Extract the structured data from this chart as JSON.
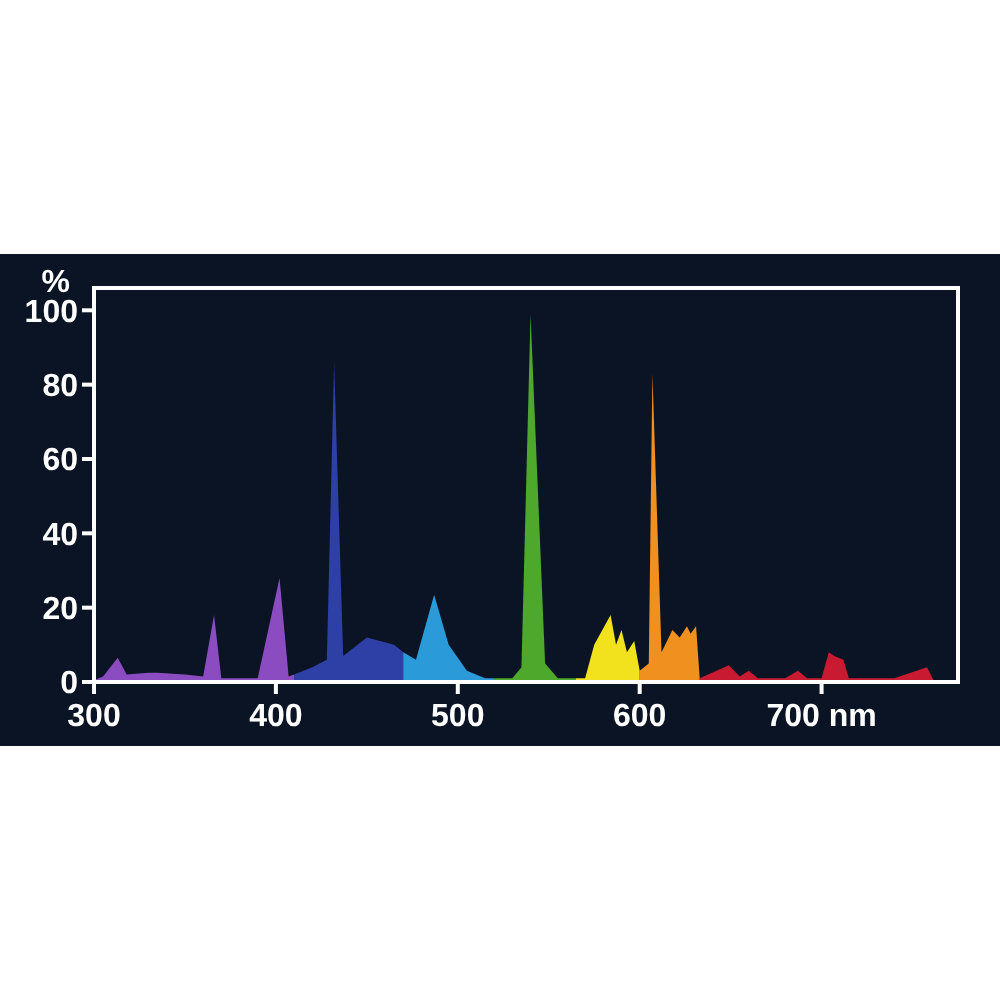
{
  "chart_data": {
    "type": "area",
    "ylabel": "%",
    "xlim": [
      300,
      775
    ],
    "ylim": [
      0,
      106
    ],
    "xticks": [
      300,
      400,
      500,
      600,
      {
        "value": 700,
        "label": "700 nm"
      }
    ],
    "yticks": [
      0,
      20,
      40,
      60,
      80,
      100
    ],
    "grid": false,
    "series": [
      {
        "color": "#8a4cc0",
        "x": [
          300,
          305,
          313,
          318,
          330,
          335,
          350,
          360,
          366,
          370,
          390,
          402,
          407,
          410
        ],
        "values": [
          0.5,
          1.5,
          6.5,
          2,
          2.5,
          2.5,
          2,
          1.5,
          18,
          1,
          1,
          28,
          1.5,
          2
        ]
      },
      {
        "color": "#2e3fa6",
        "x": [
          410,
          420,
          428,
          432,
          437,
          450,
          465,
          470
        ],
        "values": [
          2,
          4,
          6,
          86,
          7,
          12,
          10,
          8
        ]
      },
      {
        "color": "#2a9ad8",
        "x": [
          470,
          477,
          487,
          495,
          505,
          515,
          520
        ],
        "values": [
          8,
          6,
          23.5,
          10,
          3,
          1,
          1
        ]
      },
      {
        "color": "#4ea82c",
        "x": [
          520,
          530,
          535,
          540,
          548,
          555,
          565
        ],
        "values": [
          1,
          1,
          4,
          99,
          5,
          1,
          1
        ]
      },
      {
        "color": "#f2e21e",
        "x": [
          565,
          570,
          575,
          584,
          587,
          590,
          593,
          597,
          600
        ],
        "values": [
          1,
          1,
          10,
          18,
          10,
          14,
          8,
          11,
          3
        ]
      },
      {
        "color": "#f0901e",
        "x": [
          600,
          605,
          607,
          612,
          618,
          622,
          626,
          628,
          631,
          633
        ],
        "values": [
          3,
          5,
          83,
          8,
          14,
          12,
          15,
          13,
          15,
          1
        ]
      },
      {
        "color": "#c81a30",
        "x": [
          633,
          649,
          655,
          660,
          665,
          680,
          687,
          692,
          700,
          704,
          707,
          712,
          715,
          740,
          758,
          762
        ],
        "values": [
          1,
          4.5,
          1.5,
          3,
          1,
          1,
          3,
          1,
          1,
          8,
          7,
          6,
          1,
          1,
          4,
          0
        ]
      }
    ]
  }
}
